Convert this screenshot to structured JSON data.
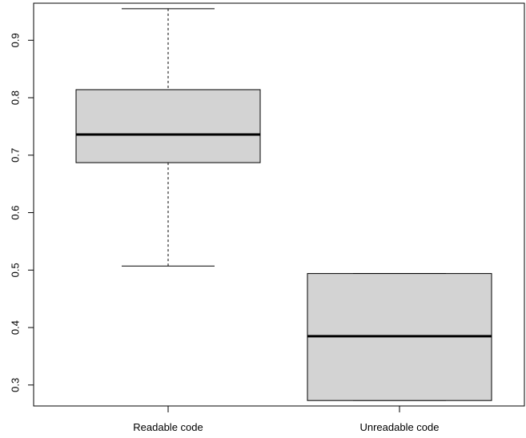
{
  "chart_data": {
    "type": "boxplot",
    "categories": [
      "Readable code",
      "Unreadable code"
    ],
    "boxes": [
      {
        "category": "Readable code",
        "whisker_low": 0.507,
        "q1": 0.687,
        "median": 0.736,
        "q3": 0.814,
        "whisker_high": 0.955
      },
      {
        "category": "Unreadable code",
        "whisker_low": 0.273,
        "q1": 0.273,
        "median": 0.385,
        "q3": 0.494,
        "whisker_high": 0.494
      }
    ],
    "y_ticks": [
      0.3,
      0.4,
      0.5,
      0.6,
      0.7,
      0.8,
      0.9
    ],
    "y_tick_labels": [
      "0.3",
      "0.4",
      "0.5",
      "0.6",
      "0.7",
      "0.8",
      "0.9"
    ],
    "ylim": [
      0.2635,
      0.9645
    ],
    "title": "",
    "xlabel": "",
    "ylabel": "",
    "box_fill": "#d3d3d3",
    "stroke_color": "#000000",
    "grid": false,
    "legend": "none"
  }
}
